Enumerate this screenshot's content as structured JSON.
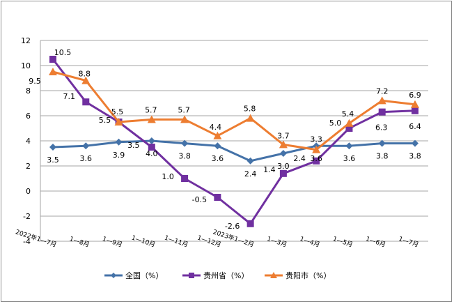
{
  "chart_data": {
    "type": "line",
    "title": "",
    "xlabel": "",
    "ylabel": "",
    "ylim": [
      -4,
      12
    ],
    "yticks": [
      -4,
      -2,
      0,
      2,
      4,
      6,
      8,
      10,
      12
    ],
    "categories": [
      "2022年1—7月",
      "1—8月",
      "1—9月",
      "1—10月",
      "1—11月",
      "1—12月",
      "2023年1—2月",
      "1—3月",
      "1—4月",
      "1—5月",
      "1—6月",
      "1—7月"
    ],
    "series": [
      {
        "name": "全国（%）",
        "color": "#4472a8",
        "marker": "diamond",
        "values": [
          3.5,
          3.6,
          3.9,
          4.0,
          3.8,
          3.6,
          2.4,
          3.0,
          3.6,
          3.6,
          3.8,
          3.8
        ],
        "labels": [
          "3.5",
          "3.6",
          "3.9",
          "4.0",
          "3.8",
          "3.6",
          "2.4",
          "3.0",
          "3.6",
          "3.6",
          "3.8",
          "3.8"
        ]
      },
      {
        "name": "贵州省（%）",
        "color": "#7030a0",
        "marker": "square",
        "values": [
          10.5,
          7.1,
          5.5,
          3.5,
          1.0,
          -0.5,
          -2.6,
          1.4,
          2.4,
          5.0,
          6.3,
          6.4
        ],
        "labels": [
          "10.5",
          "7.1",
          "5.5",
          "3.5",
          "1.0",
          "-0.5",
          "-2.6",
          "1.4",
          "2.4",
          "5.0",
          "6.3",
          "6.4"
        ]
      },
      {
        "name": "贵阳市（%）",
        "color": "#ed7d31",
        "marker": "triangle",
        "values": [
          9.5,
          8.8,
          5.5,
          5.7,
          5.7,
          4.4,
          5.8,
          3.7,
          3.3,
          5.4,
          7.2,
          6.9
        ],
        "labels": [
          "9.5",
          "8.8",
          "5.5",
          "5.7",
          "5.7",
          "4.4",
          "5.8",
          "3.7",
          "3.3",
          "5.4",
          "7.2",
          "6.9"
        ]
      }
    ],
    "legend_position": "bottom",
    "grid": true
  }
}
